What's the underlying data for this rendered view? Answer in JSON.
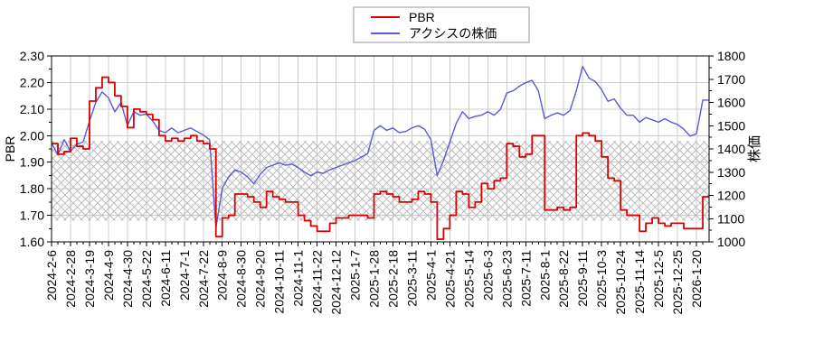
{
  "chart_data": {
    "type": "line",
    "title": "",
    "legend": {
      "position": "top-center",
      "items": [
        {
          "label": "PBR",
          "color": "#dd0000"
        },
        {
          "label": "アクシスの株価",
          "color": "#5a5ad8"
        }
      ]
    },
    "x_axis": {
      "tick_label_rotation_deg": 90,
      "trading_days_per_tick": 15,
      "minor_tick_every_trading_days": 5,
      "tick_labels": [
        "2024-2-6",
        "2024-2-28",
        "2024-3-19",
        "2024-4-9",
        "2024-4-30",
        "2024-5-22",
        "2024-6-11",
        "2024-7-1",
        "2024-7-22",
        "2024-8-9",
        "2024-8-30",
        "2024-9-20",
        "2024-10-11",
        "2024-11-1",
        "2024-11-22",
        "2024-12-12",
        "2025-1-7",
        "2025-1-28",
        "2025-2-18",
        "2025-3-11",
        "2025-4-1",
        "2025-4-21",
        "2025-5-14",
        "2025-6-3",
        "2025-6-23",
        "2025-7-11",
        "2025-8-1",
        "2025-8-22",
        "2025-9-11",
        "2025-10-3",
        "2025-10-24",
        "2025-11-14",
        "2025-12-5",
        "2025-12-25",
        "2026-1-20"
      ]
    },
    "y_axis_left": {
      "label": "PBR",
      "min": 1.6,
      "max": 2.3,
      "major_step": 0.1,
      "minor_step": 0.05,
      "tick_labels": [
        "1.60",
        "1.70",
        "1.80",
        "1.90",
        "2.00",
        "2.10",
        "2.20",
        "2.30"
      ]
    },
    "y_axis_right": {
      "label": "株価",
      "min": 1000,
      "max": 1800,
      "major_step": 100,
      "minor_step": 50,
      "tick_labels": [
        "1000",
        "1100",
        "1200",
        "1300",
        "1400",
        "1500",
        "1600",
        "1700",
        "1800"
      ]
    },
    "grid": {
      "show": true,
      "color": "#cdcdcd"
    },
    "band": {
      "style": "crosshatch",
      "axis": "left",
      "from": 1.68,
      "to": 1.98,
      "line_color": "#b5b5b5"
    },
    "series": [
      {
        "name": "PBR",
        "axis": "left",
        "color": "#dd0000",
        "line_style": "steps",
        "start": "2024-2-6",
        "interval": "weekly",
        "values": [
          1.97,
          1.93,
          1.94,
          1.99,
          1.96,
          1.95,
          2.13,
          2.18,
          2.22,
          2.2,
          2.15,
          2.11,
          2.03,
          2.1,
          2.09,
          2.08,
          2.06,
          2.0,
          1.98,
          1.99,
          1.98,
          1.99,
          2.0,
          1.98,
          1.97,
          1.95,
          1.62,
          1.69,
          1.7,
          1.78,
          1.78,
          1.77,
          1.75,
          1.73,
          1.79,
          1.77,
          1.76,
          1.75,
          1.75,
          1.7,
          1.68,
          1.66,
          1.64,
          1.64,
          1.67,
          1.69,
          1.69,
          1.7,
          1.7,
          1.7,
          1.69,
          1.78,
          1.79,
          1.78,
          1.77,
          1.75,
          1.75,
          1.76,
          1.79,
          1.78,
          1.75,
          1.61,
          1.65,
          1.7,
          1.79,
          1.78,
          1.73,
          1.75,
          1.82,
          1.8,
          1.83,
          1.84,
          1.97,
          1.96,
          1.92,
          1.93,
          2.0,
          2.0,
          1.72,
          1.72,
          1.73,
          1.72,
          1.73,
          2.0,
          2.01,
          2.0,
          1.98,
          1.92,
          1.84,
          1.83,
          1.72,
          1.7,
          1.7,
          1.64,
          1.67,
          1.69,
          1.67,
          1.66,
          1.67,
          1.67,
          1.65,
          1.65,
          1.65,
          1.77
        ]
      },
      {
        "name": "アクシスの株価",
        "axis": "right",
        "color": "#5a5ad8",
        "line_style": "line",
        "start": "2024-2-6",
        "interval": "weekly",
        "values": [
          1425,
          1375,
          1440,
          1390,
          1420,
          1430,
          1520,
          1600,
          1645,
          1620,
          1560,
          1600,
          1500,
          1560,
          1545,
          1550,
          1520,
          1480,
          1470,
          1490,
          1470,
          1480,
          1490,
          1475,
          1460,
          1440,
          1060,
          1230,
          1280,
          1310,
          1300,
          1280,
          1250,
          1290,
          1320,
          1330,
          1340,
          1330,
          1335,
          1320,
          1300,
          1285,
          1300,
          1295,
          1310,
          1320,
          1330,
          1340,
          1350,
          1365,
          1380,
          1480,
          1500,
          1480,
          1490,
          1470,
          1475,
          1490,
          1500,
          1485,
          1440,
          1285,
          1350,
          1430,
          1510,
          1560,
          1530,
          1540,
          1545,
          1560,
          1545,
          1570,
          1640,
          1650,
          1670,
          1685,
          1695,
          1650,
          1530,
          1545,
          1555,
          1545,
          1565,
          1650,
          1755,
          1705,
          1690,
          1655,
          1605,
          1615,
          1575,
          1545,
          1545,
          1515,
          1535,
          1525,
          1515,
          1530,
          1515,
          1505,
          1485,
          1455,
          1465,
          1610
        ]
      }
    ]
  }
}
